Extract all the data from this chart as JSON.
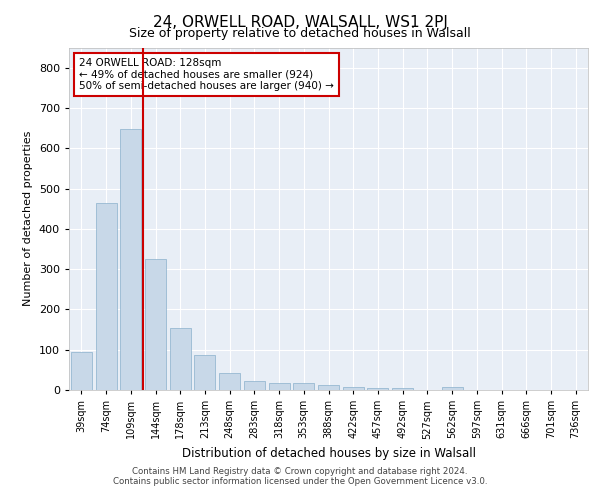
{
  "title": "24, ORWELL ROAD, WALSALL, WS1 2PJ",
  "subtitle": "Size of property relative to detached houses in Walsall",
  "xlabel": "Distribution of detached houses by size in Walsall",
  "ylabel": "Number of detached properties",
  "categories": [
    "39sqm",
    "74sqm",
    "109sqm",
    "144sqm",
    "178sqm",
    "213sqm",
    "248sqm",
    "283sqm",
    "318sqm",
    "353sqm",
    "388sqm",
    "422sqm",
    "457sqm",
    "492sqm",
    "527sqm",
    "562sqm",
    "597sqm",
    "631sqm",
    "666sqm",
    "701sqm",
    "736sqm"
  ],
  "values": [
    95,
    465,
    648,
    325,
    155,
    88,
    42,
    22,
    18,
    18,
    13,
    7,
    6,
    6,
    0,
    8,
    0,
    0,
    0,
    0,
    0
  ],
  "bar_color": "#c8d8e8",
  "bar_edge_color": "#8ab0cc",
  "vline_x": 2.5,
  "vline_color": "#cc0000",
  "annotation_text": "24 ORWELL ROAD: 128sqm\n← 49% of detached houses are smaller (924)\n50% of semi-detached houses are larger (940) →",
  "annotation_box_color": "#ffffff",
  "annotation_box_edge": "#cc0000",
  "plot_bg_color": "#e8eef6",
  "grid_color": "#ffffff",
  "ylim": [
    0,
    850
  ],
  "yticks": [
    0,
    100,
    200,
    300,
    400,
    500,
    600,
    700,
    800
  ],
  "footer_line1": "Contains HM Land Registry data © Crown copyright and database right 2024.",
  "footer_line2": "Contains public sector information licensed under the Open Government Licence v3.0.",
  "title_fontsize": 11,
  "subtitle_fontsize": 9
}
